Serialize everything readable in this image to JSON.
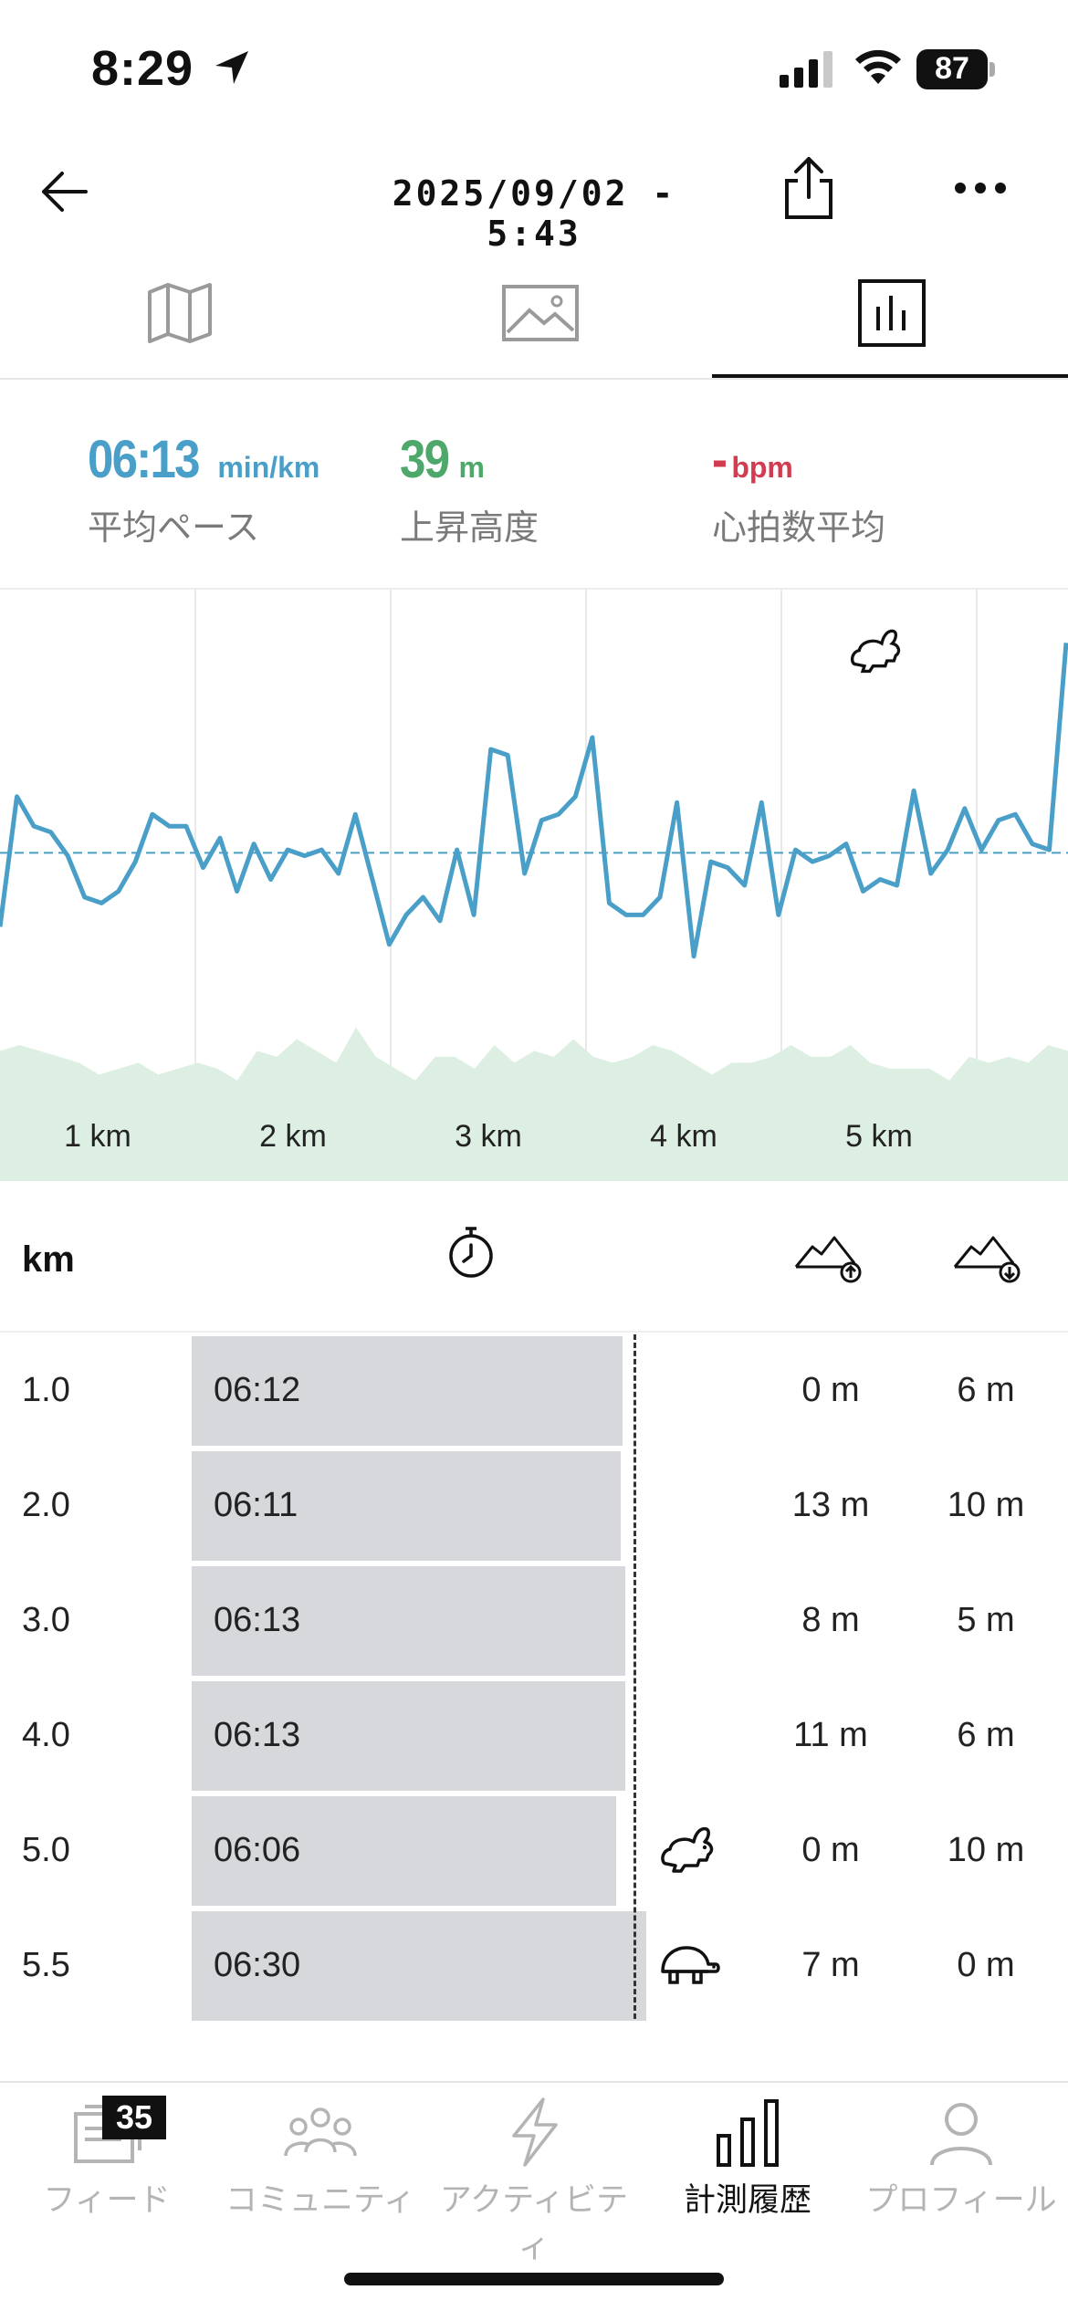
{
  "status_bar": {
    "time": "8:29",
    "battery": "87"
  },
  "header": {
    "title": "2025/09/02 - 5:43"
  },
  "tabs": [
    {
      "name": "map"
    },
    {
      "name": "photos"
    },
    {
      "name": "stats",
      "active": true
    }
  ],
  "stats": {
    "pace": {
      "value": "06:13",
      "unit": "min/km",
      "label": "平均ペース",
      "color": "#4a9fc8"
    },
    "elevation": {
      "value": "39",
      "unit": "m",
      "label": "上昇高度",
      "color": "#4fa86b"
    },
    "heart_rate": {
      "value": "-",
      "unit": "bpm",
      "label": "心拍数平均",
      "color": "#d23c50"
    }
  },
  "chart_data": {
    "type": "line",
    "x_tick_labels": [
      "1 km",
      "2 km",
      "3 km",
      "4 km",
      "5 km"
    ],
    "x_range_km": [
      0,
      5.5
    ],
    "pace_series": [
      0.57,
      0.35,
      0.4,
      0.41,
      0.45,
      0.52,
      0.53,
      0.51,
      0.46,
      0.38,
      0.4,
      0.4,
      0.47,
      0.42,
      0.51,
      0.43,
      0.49,
      0.44,
      0.45,
      0.44,
      0.48,
      0.38,
      0.49,
      0.6,
      0.55,
      0.52,
      0.56,
      0.44,
      0.55,
      0.27,
      0.28,
      0.48,
      0.39,
      0.38,
      0.35,
      0.25,
      0.53,
      0.55,
      0.55,
      0.52,
      0.36,
      0.62,
      0.46,
      0.47,
      0.5,
      0.36,
      0.55,
      0.44,
      0.46,
      0.45,
      0.43,
      0.51,
      0.49,
      0.5,
      0.34,
      0.48,
      0.44,
      0.37,
      0.44,
      0.39,
      0.38,
      0.43,
      0.44,
      0.09
    ],
    "average_pace_line": 0.445,
    "elevation_profile": [
      0.78,
      0.77,
      0.78,
      0.79,
      0.8,
      0.82,
      0.81,
      0.8,
      0.82,
      0.81,
      0.8,
      0.81,
      0.83,
      0.78,
      0.79,
      0.76,
      0.78,
      0.8,
      0.74,
      0.79,
      0.81,
      0.83,
      0.79,
      0.79,
      0.81,
      0.77,
      0.8,
      0.78,
      0.79,
      0.76,
      0.79,
      0.8,
      0.79,
      0.77,
      0.78,
      0.8,
      0.82,
      0.8,
      0.8,
      0.79,
      0.77,
      0.79,
      0.79,
      0.77,
      0.8,
      0.81,
      0.81,
      0.81,
      0.83,
      0.79,
      0.8,
      0.79,
      0.8,
      0.77,
      0.78
    ],
    "fastest_marker_icon": "rabbit-icon"
  },
  "table": {
    "header": {
      "km_label": "km"
    },
    "rows": [
      {
        "km": "1.0",
        "pace": "06:12",
        "up": "0 m",
        "down": "6 m",
        "bar": 0.93,
        "icon": ""
      },
      {
        "km": "2.0",
        "pace": "06:11",
        "up": "13 m",
        "down": "10 m",
        "bar": 0.925,
        "icon": ""
      },
      {
        "km": "3.0",
        "pace": "06:13",
        "up": "8 m",
        "down": "5 m",
        "bar": 0.935,
        "icon": ""
      },
      {
        "km": "4.0",
        "pace": "06:13",
        "up": "11 m",
        "down": "6 m",
        "bar": 0.935,
        "icon": ""
      },
      {
        "km": "5.0",
        "pace": "06:06",
        "up": "0 m",
        "down": "10 m",
        "bar": 0.915,
        "icon": "rabbit-icon"
      },
      {
        "km": "5.5",
        "pace": "06:30",
        "up": "7 m",
        "down": "0 m",
        "bar": 0.98,
        "icon": "turtle-icon"
      }
    ]
  },
  "bottom_nav": {
    "items": [
      {
        "label": "フィード",
        "icon": "feed-icon",
        "badge": "35"
      },
      {
        "label": "コミュニティ",
        "icon": "community-icon"
      },
      {
        "label": "アクティビティ",
        "icon": "lightning-icon"
      },
      {
        "label": "計測履歴",
        "icon": "bar-chart-icon",
        "active": true
      },
      {
        "label": "プロフィール",
        "icon": "profile-icon"
      }
    ]
  }
}
